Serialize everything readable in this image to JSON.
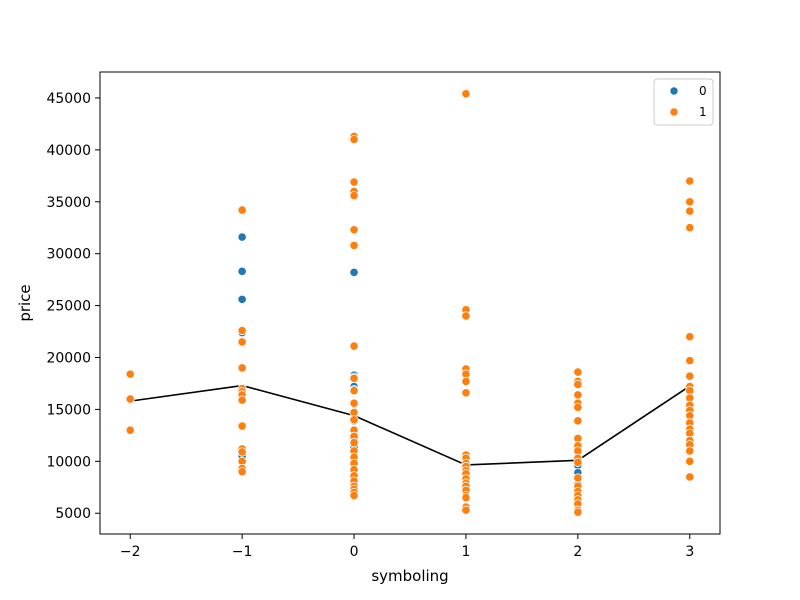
{
  "chart_data": {
    "type": "scatter",
    "xlabel": "symboling",
    "ylabel": "price",
    "x_ticks": [
      -2,
      -1,
      0,
      1,
      2,
      3
    ],
    "y_ticks": [
      5000,
      10000,
      15000,
      20000,
      25000,
      30000,
      35000,
      40000,
      45000
    ],
    "xlim": [
      -2.27,
      3.27
    ],
    "ylim": [
      3000,
      47500
    ],
    "legend_position": "top-right",
    "series": [
      {
        "name": "0",
        "color": "#1f77b4",
        "points": [
          [
            -1,
            31600
          ],
          [
            -1,
            28300
          ],
          [
            -1,
            25600
          ],
          [
            -1,
            22400
          ],
          [
            -1,
            16500
          ],
          [
            -1,
            10500
          ],
          [
            0,
            28200
          ],
          [
            0,
            18300
          ],
          [
            0,
            18100
          ],
          [
            0,
            17200
          ],
          [
            0,
            16900
          ],
          [
            0,
            15500
          ],
          [
            0,
            13900
          ],
          [
            0,
            13000
          ],
          [
            0,
            12100
          ],
          [
            0,
            11300
          ],
          [
            0,
            10900
          ],
          [
            0,
            10100
          ],
          [
            0,
            9200
          ],
          [
            0,
            8400
          ],
          [
            0,
            7800
          ],
          [
            0,
            7000
          ],
          [
            2,
            9600
          ],
          [
            2,
            8900
          ],
          [
            2,
            8300
          ],
          [
            2,
            7800
          ],
          [
            2,
            7400
          ],
          [
            2,
            6900
          ]
        ]
      },
      {
        "name": "1",
        "color": "#ff7f0e",
        "points": [
          [
            -2,
            18400
          ],
          [
            -2,
            16000
          ],
          [
            -2,
            13000
          ],
          [
            -1,
            34200
          ],
          [
            -1,
            22600
          ],
          [
            -1,
            21500
          ],
          [
            -1,
            19000
          ],
          [
            -1,
            17000
          ],
          [
            -1,
            16700
          ],
          [
            -1,
            16400
          ],
          [
            -1,
            15900
          ],
          [
            -1,
            13400
          ],
          [
            -1,
            11200
          ],
          [
            -1,
            10900
          ],
          [
            -1,
            10000
          ],
          [
            -1,
            9300
          ],
          [
            -1,
            9000
          ],
          [
            0,
            41300
          ],
          [
            0,
            41000
          ],
          [
            0,
            36900
          ],
          [
            0,
            36000
          ],
          [
            0,
            35600
          ],
          [
            0,
            32300
          ],
          [
            0,
            30800
          ],
          [
            0,
            21100
          ],
          [
            0,
            18000
          ],
          [
            0,
            16800
          ],
          [
            0,
            15600
          ],
          [
            0,
            14700
          ],
          [
            0,
            14000
          ],
          [
            0,
            13000
          ],
          [
            0,
            12400
          ],
          [
            0,
            11800
          ],
          [
            0,
            11000
          ],
          [
            0,
            10400
          ],
          [
            0,
            9800
          ],
          [
            0,
            9200
          ],
          [
            0,
            8600
          ],
          [
            0,
            8100
          ],
          [
            0,
            7600
          ],
          [
            0,
            7300
          ],
          [
            0,
            7000
          ],
          [
            0,
            6700
          ],
          [
            1,
            45400
          ],
          [
            1,
            24600
          ],
          [
            1,
            24000
          ],
          [
            1,
            18900
          ],
          [
            1,
            18400
          ],
          [
            1,
            17700
          ],
          [
            1,
            16600
          ],
          [
            1,
            10600
          ],
          [
            1,
            10300
          ],
          [
            1,
            9800
          ],
          [
            1,
            9500
          ],
          [
            1,
            9100
          ],
          [
            1,
            8800
          ],
          [
            1,
            8300
          ],
          [
            1,
            7900
          ],
          [
            1,
            7600
          ],
          [
            1,
            7200
          ],
          [
            1,
            6700
          ],
          [
            1,
            6500
          ],
          [
            1,
            5600
          ],
          [
            1,
            5300
          ],
          [
            2,
            18600
          ],
          [
            2,
            17700
          ],
          [
            2,
            17400
          ],
          [
            2,
            16400
          ],
          [
            2,
            15600
          ],
          [
            2,
            15200
          ],
          [
            2,
            13900
          ],
          [
            2,
            12200
          ],
          [
            2,
            11500
          ],
          [
            2,
            11000
          ],
          [
            2,
            10300
          ],
          [
            2,
            9900
          ],
          [
            2,
            8400
          ],
          [
            2,
            7600
          ],
          [
            2,
            7100
          ],
          [
            2,
            6700
          ],
          [
            2,
            6300
          ],
          [
            2,
            5900
          ],
          [
            2,
            5300
          ],
          [
            2,
            5100
          ],
          [
            3,
            37000
          ],
          [
            3,
            35000
          ],
          [
            3,
            34100
          ],
          [
            3,
            32500
          ],
          [
            3,
            22000
          ],
          [
            3,
            19700
          ],
          [
            3,
            18200
          ],
          [
            3,
            17200
          ],
          [
            3,
            16800
          ],
          [
            3,
            16100
          ],
          [
            3,
            15400
          ],
          [
            3,
            14900
          ],
          [
            3,
            14400
          ],
          [
            3,
            13700
          ],
          [
            3,
            13100
          ],
          [
            3,
            12700
          ],
          [
            3,
            12000
          ],
          [
            3,
            11600
          ],
          [
            3,
            11000
          ],
          [
            3,
            10000
          ],
          [
            3,
            8500
          ]
        ]
      }
    ],
    "mean_line": {
      "color": "#000000",
      "x": [
        -2,
        -1,
        0,
        1,
        2,
        3
      ],
      "y": [
        15800,
        17300,
        14400,
        9650,
        10100,
        17250
      ]
    }
  }
}
